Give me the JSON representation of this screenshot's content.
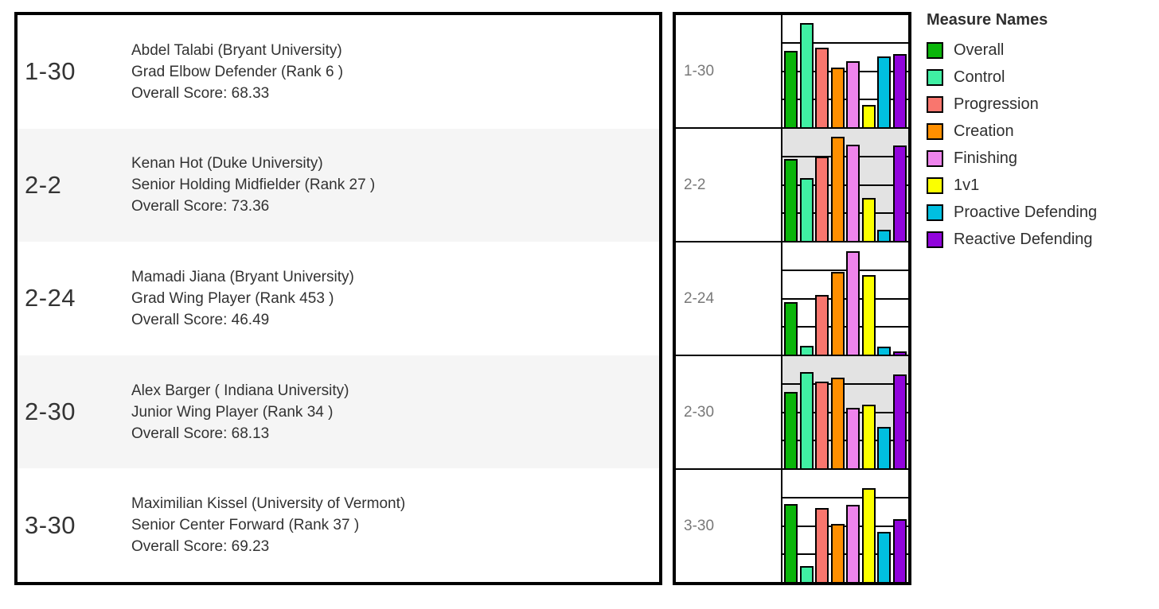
{
  "players": [
    {
      "code": "1-30",
      "line1": "Abdel Talabi (Bryant University)",
      "line2": "Grad Elbow Defender  (Rank 6 )",
      "line3": "Overall Score: 68.33"
    },
    {
      "code": "2-2",
      "line1": "Kenan Hot (Duke University)",
      "line2": "Senior Holding Midfielder  (Rank 27 )",
      "line3": "Overall Score: 73.36"
    },
    {
      "code": "2-24",
      "line1": "Mamadi Jiana (Bryant University)",
      "line2": "Grad Wing Player  (Rank 453 )",
      "line3": "Overall Score: 46.49"
    },
    {
      "code": "2-30",
      "line1": "Alex Barger ( Indiana University)",
      "line2": "Junior Wing Player  (Rank 34 )",
      "line3": "Overall Score: 68.13"
    },
    {
      "code": "3-30",
      "line1": "Maximilian Kissel (University of Vermont)",
      "line2": "Senior Center Forward  (Rank 37 )",
      "line3": "Overall Score: 69.23"
    }
  ],
  "legend": {
    "title": "Measure Names",
    "items": [
      {
        "label": "Overall",
        "color": "#0ab50a"
      },
      {
        "label": "Control",
        "color": "#40efa3"
      },
      {
        "label": "Progression",
        "color": "#f9766e"
      },
      {
        "label": "Creation",
        "color": "#ff8f00"
      },
      {
        "label": "Finishing",
        "color": "#ee84ec"
      },
      {
        "label": "1v1",
        "color": "#fbff00"
      },
      {
        "label": "Proactive Defending",
        "color": "#00bfe0"
      },
      {
        "label": "Reactive Defending",
        "color": "#9104dc"
      }
    ]
  },
  "chart_data": {
    "type": "bar",
    "measures": [
      "Overall",
      "Control",
      "Progression",
      "Creation",
      "Finishing",
      "1v1",
      "Proactive Defending",
      "Reactive Defending"
    ],
    "colors": [
      "#0ab50a",
      "#40efa3",
      "#f9766e",
      "#ff8f00",
      "#ee84ec",
      "#fbff00",
      "#00bfe0",
      "#9104dc"
    ],
    "rows": [
      {
        "code": "1-30",
        "values": [
          68.33,
          93,
          71,
          53,
          59,
          20,
          63,
          65
        ]
      },
      {
        "code": "2-2",
        "values": [
          73.36,
          56,
          75,
          93,
          86,
          38,
          10,
          85
        ]
      },
      {
        "code": "2-24",
        "values": [
          46.49,
          8,
          53,
          74,
          92,
          71,
          7,
          3
        ]
      },
      {
        "code": "2-30",
        "values": [
          68.13,
          86,
          77,
          81,
          54,
          57,
          37,
          84
        ]
      },
      {
        "code": "3-30",
        "values": [
          69.23,
          14,
          66,
          52,
          69,
          84,
          45,
          56
        ]
      }
    ],
    "ylim": [
      0,
      100
    ],
    "gridlines": [
      25,
      50,
      75
    ],
    "grid": true,
    "legend_position": "right",
    "title": "Measure Names"
  }
}
